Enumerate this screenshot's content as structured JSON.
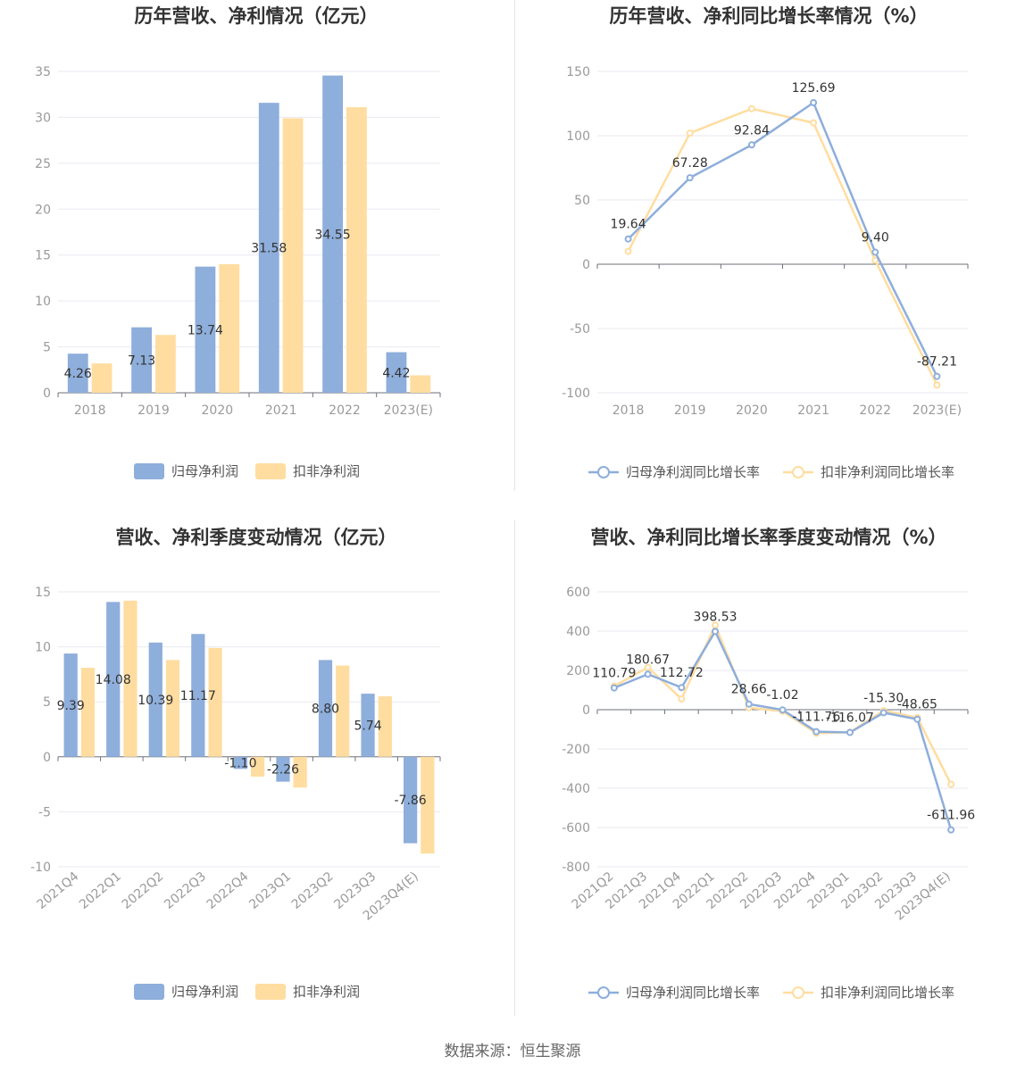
{
  "colors": {
    "series_a": "#8eaedb",
    "series_b": "#ffdda0",
    "axis": "#6e7079",
    "grid": "#e8eaf0"
  },
  "source": "数据来源：恒生聚源",
  "chart_data": [
    {
      "type": "bar",
      "title": "历年营收、净利情况（亿元）",
      "categories": [
        "2018",
        "2019",
        "2020",
        "2021",
        "2022",
        "2023(E)"
      ],
      "ylim": [
        0,
        35
      ],
      "yticks": [
        0,
        5,
        10,
        15,
        20,
        25,
        30,
        35
      ],
      "xlabel_rotate": false,
      "series": [
        {
          "name": "归母净利润",
          "values": [
            4.26,
            7.13,
            13.74,
            31.58,
            34.55,
            4.42
          ],
          "labels": [
            "4.26",
            "7.13",
            "13.74",
            "31.58",
            "34.55",
            "4.42"
          ]
        },
        {
          "name": "扣非净利润",
          "values": [
            3.2,
            6.3,
            14.0,
            29.9,
            31.1,
            1.9
          ]
        }
      ]
    },
    {
      "type": "line",
      "title": "历年营收、净利同比增长率情况（%）",
      "categories": [
        "2018",
        "2019",
        "2020",
        "2021",
        "2022",
        "2023(E)"
      ],
      "ylim": [
        -100,
        150
      ],
      "yticks": [
        -100,
        -50,
        0,
        50,
        100,
        150
      ],
      "xlabel_rotate": false,
      "series": [
        {
          "name": "归母净利润同比增长率",
          "values": [
            19.64,
            67.28,
            92.84,
            125.69,
            9.4,
            -87.21
          ],
          "labels": [
            "19.64",
            "67.28",
            "92.84",
            "125.69",
            "9.40",
            "-87.21"
          ]
        },
        {
          "name": "扣非净利润同比增长率",
          "values": [
            10,
            102,
            121,
            110,
            3,
            -94
          ]
        }
      ]
    },
    {
      "type": "bar",
      "title": "营收、净利季度变动情况（亿元）",
      "categories": [
        "2021Q4",
        "2022Q1",
        "2022Q2",
        "2022Q3",
        "2022Q4",
        "2023Q1",
        "2023Q2",
        "2023Q3",
        "2023Q4(E)"
      ],
      "ylim": [
        -10,
        15
      ],
      "yticks": [
        -10,
        -5,
        0,
        5,
        10,
        15
      ],
      "xlabel_rotate": true,
      "series": [
        {
          "name": "归母净利润",
          "values": [
            9.39,
            14.08,
            10.39,
            11.17,
            -1.1,
            -2.26,
            8.8,
            5.74,
            -7.86
          ],
          "labels": [
            "9.39",
            "14.08",
            "10.39",
            "11.17",
            "-1.10",
            "-2.26",
            "8.80",
            "5.74",
            "-7.86"
          ]
        },
        {
          "name": "扣非净利润",
          "values": [
            8.1,
            14.2,
            8.8,
            9.9,
            -1.8,
            -2.8,
            8.3,
            5.5,
            -8.8
          ]
        }
      ]
    },
    {
      "type": "line",
      "title": "营收、净利同比增长率季度变动情况（%）",
      "categories": [
        "2021Q2",
        "2021Q3",
        "2021Q4",
        "2022Q1",
        "2022Q2",
        "2022Q3",
        "2022Q4",
        "2023Q1",
        "2023Q2",
        "2023Q3",
        "2023Q4(E)"
      ],
      "ylim": [
        -800,
        600
      ],
      "yticks": [
        -800,
        -600,
        -400,
        -200,
        0,
        200,
        400,
        600
      ],
      "xlabel_rotate": true,
      "series": [
        {
          "name": "归母净利润同比增长率",
          "values": [
            110.79,
            180.67,
            112.72,
            398.53,
            28.66,
            -1.02,
            -111.76,
            -116.07,
            -15.3,
            -48.65,
            -611.96
          ],
          "labels": [
            "110.79",
            "180.67",
            "112.72",
            "398.53",
            "28.66",
            "-1.02",
            "-111.76",
            "-116.07",
            "-15.30",
            "-48.65",
            "-611.96"
          ]
        },
        {
          "name": "扣非净利润同比增长率",
          "values": [
            120,
            215,
            55,
            430,
            10,
            -8,
            -120,
            -115,
            -5,
            -40,
            -380
          ]
        }
      ]
    }
  ]
}
